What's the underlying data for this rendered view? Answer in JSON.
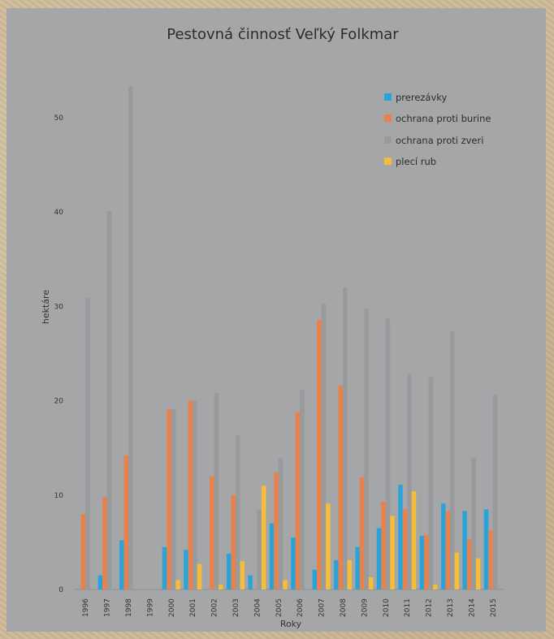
{
  "colors": {
    "prerezavky": "#2aa3d9",
    "burina": "#e8814c",
    "zver": "#999a9c",
    "plec": "#f5bd3a",
    "axis": "#8c8d8f"
  },
  "chart_data": {
    "type": "bar",
    "title": "Pestovná činnosť Veľký Folkmar",
    "xlabel": "Roky",
    "ylabel": "hektáre",
    "ylim": [
      0,
      53
    ],
    "yticks": [
      0,
      10,
      20,
      30,
      40,
      50
    ],
    "grid": false,
    "legend_position": "top-right",
    "categories": [
      "1996",
      "1997",
      "1998",
      "1999",
      "2000",
      "2001",
      "2002",
      "2003",
      "2004",
      "2005",
      "2006",
      "2007",
      "2008",
      "2009",
      "2010",
      "2011",
      "2012",
      "2013",
      "2014",
      "2015"
    ],
    "series": [
      {
        "name": "prerezávky",
        "color_key": "prerezavky",
        "values": [
          0,
          1.5,
          5.2,
          0,
          4.5,
          4.2,
          0,
          3.8,
          1.5,
          7.0,
          5.5,
          2.1,
          3.1,
          4.5,
          6.5,
          11.1,
          5.7,
          9.1,
          8.3,
          8.5
        ]
      },
      {
        "name": "ochrana proti burine",
        "color_key": "burina",
        "values": [
          8.0,
          9.8,
          14.2,
          0,
          19.1,
          20.0,
          12.0,
          10.0,
          0,
          12.4,
          18.8,
          28.6,
          21.6,
          11.9,
          9.3,
          8.5,
          5.8,
          8.3,
          5.3,
          6.3
        ]
      },
      {
        "name": "ochrana proti zveri",
        "color_key": "zver",
        "values": [
          30.9,
          40.1,
          53.3,
          0,
          19.1,
          20.0,
          20.8,
          16.3,
          8.5,
          13.9,
          21.2,
          30.3,
          32.0,
          29.8,
          28.7,
          22.8,
          22.5,
          27.4,
          14.0,
          20.6
        ]
      },
      {
        "name": "plecí rub",
        "color_key": "plec",
        "values": [
          0,
          0,
          0,
          0,
          1.0,
          2.7,
          0.5,
          3.0,
          11.0,
          1.0,
          0,
          9.1,
          3.1,
          1.3,
          7.8,
          10.4,
          0.5,
          3.9,
          3.3,
          0
        ]
      }
    ]
  }
}
